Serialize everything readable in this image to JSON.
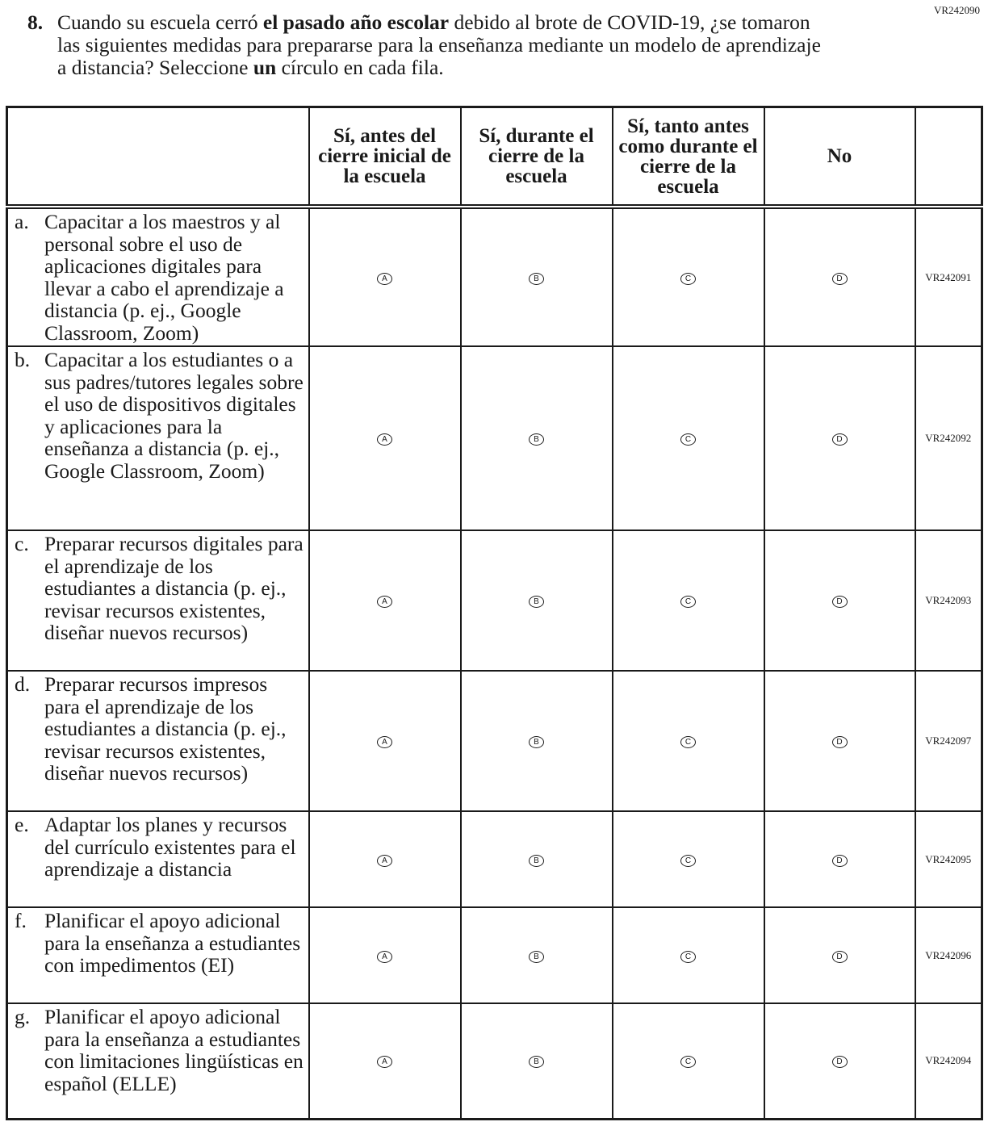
{
  "item_code": "VR242090",
  "question": {
    "number": "8.",
    "parts": [
      "Cuando su escuela cerró ",
      "el pasado año escolar",
      " debido al brote de COVID-19, ¿se tomaron las siguientes medidas para prepararse para la enseñanza mediante un modelo de aprendizaje a distancia? Seleccione ",
      "un",
      " círculo en cada fila."
    ]
  },
  "columns": [
    "Sí, antes del cierre inicial de la escuela",
    "Sí, durante el cierre de la escuela",
    "Sí, tanto antes como durante el cierre de la escuela",
    "No"
  ],
  "bubbles": [
    "A",
    "B",
    "C",
    "D"
  ],
  "rows": [
    {
      "letter": "a.",
      "text": "Capacitar a los maestros y al personal sobre el uso de aplicaciones digitales para llevar a cabo el aprendizaje a distancia (p. ej., Google Classroom, Zoom)",
      "code": "VR242091"
    },
    {
      "letter": "b.",
      "text": "Capacitar a los estudiantes o a sus padres/tutores legales sobre el uso de dispositivos digitales y aplicaciones para la enseñanza a distancia (p. ej., Google Classroom, Zoom)",
      "code": "VR242092"
    },
    {
      "letter": "c.",
      "text": "Preparar recursos digitales para el aprendizaje de los estudiantes a distancia (p. ej., revisar recursos existentes, diseñar nuevos recursos)",
      "code": "VR242093"
    },
    {
      "letter": "d.",
      "text": "Preparar recursos impresos para el aprendizaje de los estudiantes a distancia (p. ej., revisar recursos existentes, diseñar nuevos recursos)",
      "code": "VR242097"
    },
    {
      "letter": "e.",
      "text": "Adaptar los planes y recursos del currículo existentes para el aprendizaje a distancia",
      "code": "VR242095"
    },
    {
      "letter": "f.",
      "text": "Planificar el apoyo adicional para la enseñanza a estudiantes con impedimentos (EI)",
      "code": "VR242096"
    },
    {
      "letter": "g.",
      "text": "Planificar el apoyo adicional para la enseñanza a estudiantes con limitaciones lingüísticas en español (ELLE)",
      "code": "VR242094"
    }
  ]
}
